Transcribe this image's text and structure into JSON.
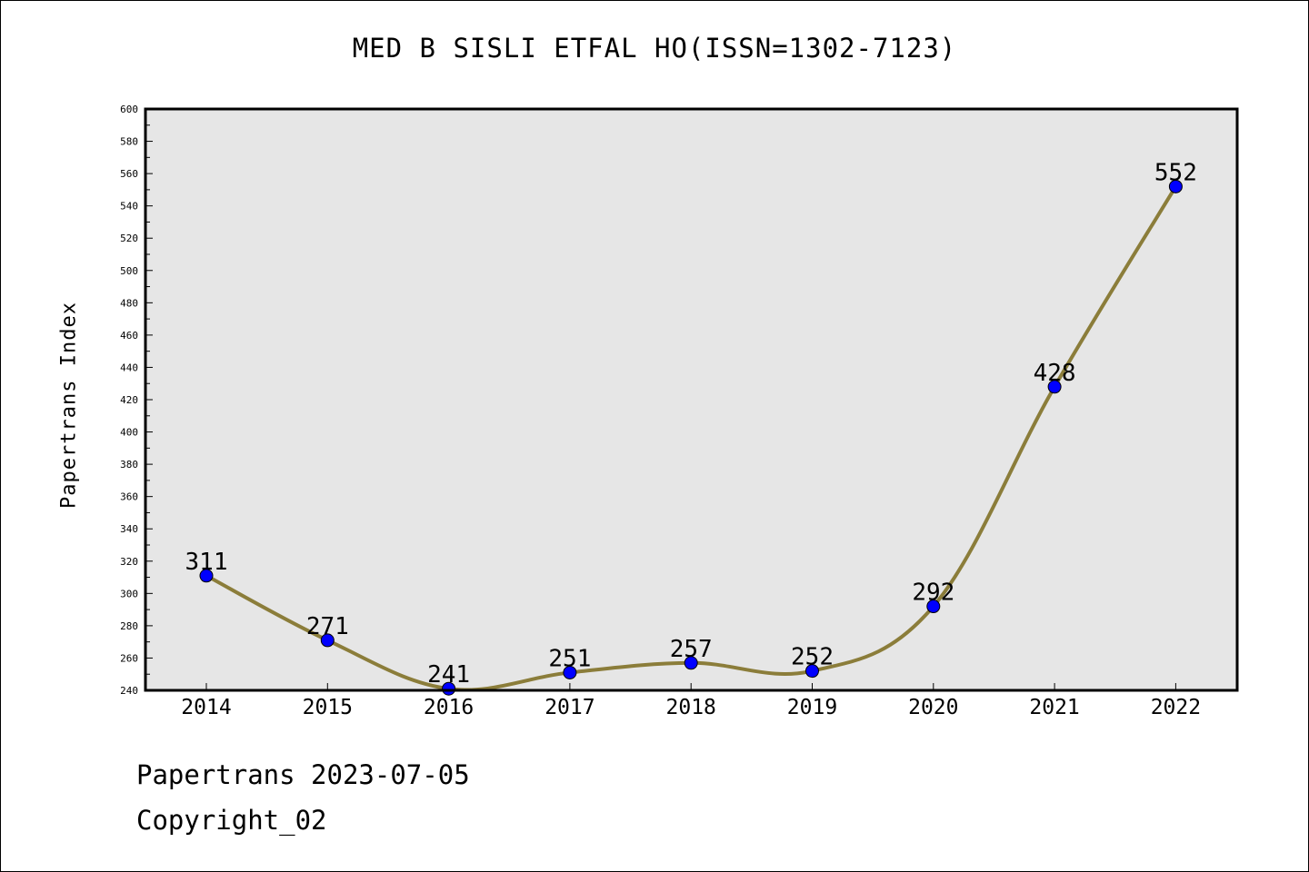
{
  "chart_data": {
    "type": "line",
    "title": "MED B SISLI ETFAL HO(ISSN=1302-7123)",
    "xlabel": "",
    "ylabel": "Papertrans Index",
    "categories": [
      "2014",
      "2015",
      "2016",
      "2017",
      "2018",
      "2019",
      "2020",
      "2021",
      "2022"
    ],
    "series": [
      {
        "values": [
          311,
          271,
          241,
          251,
          257,
          252,
          292,
          428,
          552
        ]
      }
    ],
    "data_labels": [
      "311",
      "271",
      "241",
      "251",
      "257",
      "252",
      "292",
      "428",
      "552"
    ],
    "ylim": [
      240,
      600
    ],
    "y_ticks": [
      "240",
      "260",
      "280",
      "300",
      "320",
      "340",
      "360",
      "380",
      "400",
      "420",
      "440",
      "460",
      "480",
      "500",
      "520",
      "540",
      "560",
      "580",
      "600"
    ],
    "grid": false,
    "legend": "none",
    "colors": {
      "line": "#8b7d3a",
      "marker": "#0000ff",
      "plot_background": "#e6e6e6",
      "axis": "#000000"
    }
  },
  "footer": {
    "date_line": "Papertrans 2023-07-05",
    "copyright_line": "Copyright_02"
  }
}
